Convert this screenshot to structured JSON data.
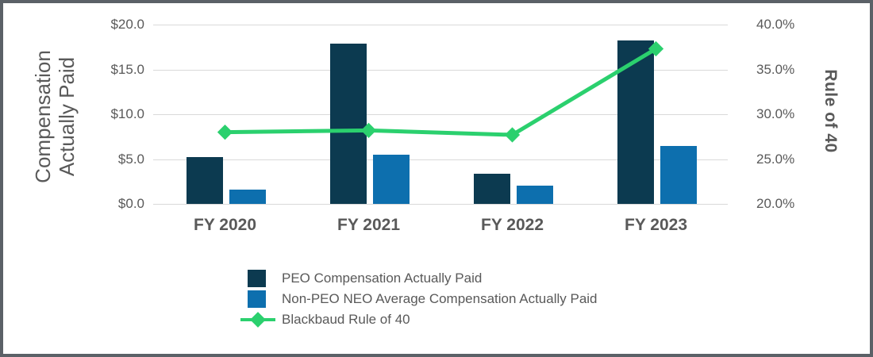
{
  "chart_data": {
    "type": "bar",
    "categories": [
      "FY 2020",
      "FY 2021",
      "FY 2022",
      "FY 2023"
    ],
    "series": [
      {
        "name": "PEO Compensation Actually Paid",
        "type": "bar",
        "axis": "left",
        "color": "#0c3a50",
        "values": [
          5.2,
          17.9,
          3.4,
          18.2
        ]
      },
      {
        "name": "Non-PEO NEO Average Compensation Actually Paid",
        "type": "bar",
        "axis": "left",
        "color": "#0d6fae",
        "values": [
          1.6,
          5.5,
          2.0,
          6.5
        ]
      },
      {
        "name": "Blackbaud Rule of 40",
        "type": "line",
        "axis": "right",
        "color": "#2bd06e",
        "values": [
          28.0,
          28.2,
          27.7,
          37.3
        ]
      }
    ],
    "left_axis": {
      "label": "Compensation Actually Paid",
      "min": 0,
      "max": 20,
      "ticks": [
        "$20.0",
        "$15.0",
        "$10.0",
        "$5.0",
        "$0.0"
      ]
    },
    "right_axis": {
      "label": "Rule of 40",
      "min": 20,
      "max": 40,
      "ticks": [
        "40.0%",
        "35.0%",
        "30.0%",
        "25.0%",
        "20.0%"
      ]
    },
    "grid": true,
    "legend_position": "bottom",
    "styles": {
      "text_color": "#595959",
      "grid_color": "#d9d9d9",
      "frame_border_color": "#5b6167",
      "background": "#ffffff"
    }
  }
}
